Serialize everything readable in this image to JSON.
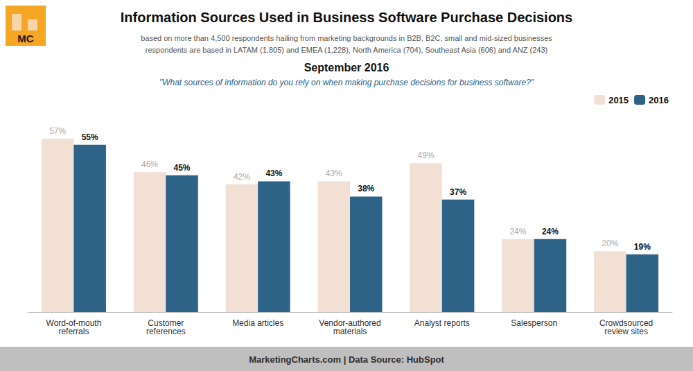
{
  "chart_data": {
    "type": "bar",
    "title": "Information Sources Used in Business Software Purchase Decisions",
    "subtitle": [
      "based on more than 4,500 respondents hailing from marketing backgrounds in B2B, B2C, small and mid-sized businesses",
      "respondents are based in LATAM (1,805) and EMEA (1,228), North America (704), Southeast Asia (606) and ANZ (243)"
    ],
    "date_label": "September 2016",
    "question": "\"What sources of information do you rely on when making purchase decisions for business software?\"",
    "footer": "MarketingCharts.com | Data Source: HubSpot",
    "logo": "MC",
    "categories": [
      "Word-of-mouth\nreferrals",
      "Customer\nreferences",
      "Media articles",
      "Vendor-authored\nmaterials",
      "Analyst reports",
      "Salesperson",
      "Crowdsourced\nreview sites"
    ],
    "series": [
      {
        "name": "2015",
        "color": "#f2e0d5",
        "values": [
          57,
          46,
          42,
          43,
          49,
          24,
          20
        ],
        "value_labels": [
          "57%",
          "46%",
          "42%",
          "43%",
          "49%",
          "24%",
          "20%"
        ]
      },
      {
        "name": "2016",
        "color": "#2e6388",
        "values": [
          55,
          45,
          43,
          38,
          37,
          24,
          19
        ],
        "value_labels": [
          "55%",
          "45%",
          "43%",
          "38%",
          "37%",
          "24%",
          "19%"
        ]
      }
    ],
    "ylim": [
      0,
      65
    ],
    "grid": false,
    "legend": "upper right",
    "data_labels": true,
    "tick_labels": "x"
  }
}
